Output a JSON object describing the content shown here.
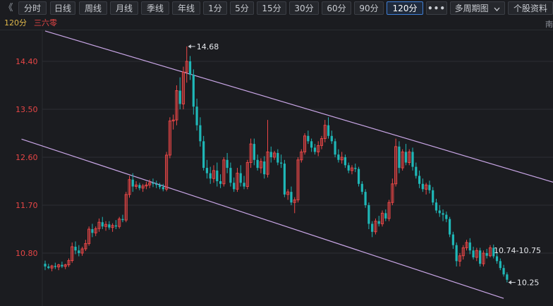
{
  "toolbar": {
    "collapse_icon": "double-chevron-left-icon",
    "collapse_glyph": "《",
    "buttons": [
      "分时",
      "日线",
      "周线",
      "月线",
      "季线",
      "年线",
      "1分",
      "5分",
      "15分",
      "30分",
      "60分",
      "90分",
      "120分"
    ],
    "active": "120分",
    "more_label": "•••",
    "multi_period_label": "多周期图",
    "multi_period_icon": "chevron-down-icon",
    "profile_label": "个股资料"
  },
  "subbar": {
    "period": "120分",
    "stock_name": "三六零",
    "corner_char": "南"
  },
  "colors": {
    "up": "#f04848",
    "down": "#1fb7b7",
    "channel": "#c9a6e6",
    "grid": "#2c2e34",
    "axis_text_up": "#e84646",
    "axis_text": "#c9ccd2",
    "background": "#1b1c20"
  },
  "chart_data": {
    "type": "candlestick",
    "yticks": [
      14.4,
      13.5,
      12.6,
      11.7,
      10.8
    ],
    "ytick_labels": [
      "14.40",
      "13.50",
      "12.60",
      "11.70",
      "10.80"
    ],
    "ylim": [
      9.95,
      14.95
    ],
    "annotations": {
      "high_label": "14.68",
      "low_label": "10.25",
      "range_label": "10.74-10.75"
    },
    "channel_lines": [
      {
        "from": [
          0,
          14.97
        ],
        "to": [
          164,
          11.88
        ]
      },
      {
        "from": [
          -7,
          12.94
        ],
        "to": [
          136,
          9.95
        ]
      }
    ],
    "candles": [
      [
        10.6,
        10.66,
        10.48,
        10.55
      ],
      [
        10.55,
        10.6,
        10.5,
        10.52
      ],
      [
        10.52,
        10.58,
        10.46,
        10.56
      ],
      [
        10.56,
        10.62,
        10.5,
        10.54
      ],
      [
        10.54,
        10.6,
        10.48,
        10.58
      ],
      [
        10.58,
        10.64,
        10.52,
        10.55
      ],
      [
        10.55,
        10.6,
        10.5,
        10.58
      ],
      [
        10.58,
        10.7,
        10.54,
        10.66
      ],
      [
        10.66,
        11.0,
        10.62,
        10.92
      ],
      [
        10.92,
        11.02,
        10.78,
        10.85
      ],
      [
        10.85,
        10.95,
        10.74,
        10.8
      ],
      [
        10.8,
        10.92,
        10.75,
        10.88
      ],
      [
        10.88,
        11.05,
        10.84,
        10.98
      ],
      [
        10.98,
        11.3,
        10.94,
        11.25
      ],
      [
        11.25,
        11.35,
        11.1,
        11.18
      ],
      [
        11.18,
        11.3,
        11.12,
        11.26
      ],
      [
        11.26,
        11.45,
        11.2,
        11.38
      ],
      [
        11.38,
        11.48,
        11.25,
        11.3
      ],
      [
        11.3,
        11.4,
        11.22,
        11.34
      ],
      [
        11.34,
        11.4,
        11.24,
        11.28
      ],
      [
        11.28,
        11.36,
        11.2,
        11.32
      ],
      [
        11.32,
        11.42,
        11.25,
        11.3
      ],
      [
        11.3,
        11.48,
        11.26,
        11.44
      ],
      [
        11.44,
        11.52,
        11.38,
        11.42
      ],
      [
        11.42,
        11.95,
        11.38,
        11.9
      ],
      [
        11.9,
        12.25,
        11.84,
        12.18
      ],
      [
        12.18,
        12.3,
        11.95,
        12.05
      ],
      [
        12.05,
        12.15,
        12.0,
        12.08
      ],
      [
        12.08,
        12.12,
        11.98,
        12.02
      ],
      [
        12.02,
        12.1,
        11.95,
        12.06
      ],
      [
        12.06,
        12.14,
        12.0,
        12.08
      ],
      [
        12.08,
        12.18,
        12.02,
        12.12
      ],
      [
        12.12,
        12.2,
        12.04,
        12.1
      ],
      [
        12.1,
        12.16,
        12.02,
        12.08
      ],
      [
        12.08,
        12.12,
        12.0,
        12.04
      ],
      [
        12.04,
        12.1,
        11.96,
        12.0
      ],
      [
        12.0,
        12.7,
        11.96,
        12.64
      ],
      [
        12.64,
        13.35,
        12.58,
        13.28
      ],
      [
        13.28,
        13.4,
        13.12,
        13.3
      ],
      [
        13.3,
        13.95,
        13.2,
        13.85
      ],
      [
        13.85,
        14.1,
        13.5,
        13.6
      ],
      [
        13.6,
        14.3,
        13.5,
        14.2
      ],
      [
        14.2,
        14.68,
        14.0,
        14.4
      ],
      [
        14.4,
        14.5,
        14.05,
        14.15
      ],
      [
        14.15,
        14.25,
        13.4,
        13.55
      ],
      [
        13.55,
        13.7,
        13.1,
        13.2
      ],
      [
        13.2,
        13.35,
        12.8,
        12.9
      ],
      [
        12.9,
        13.0,
        12.35,
        12.4
      ],
      [
        12.4,
        12.55,
        12.2,
        12.3
      ],
      [
        12.3,
        12.42,
        12.1,
        12.2
      ],
      [
        12.2,
        12.45,
        12.12,
        12.35
      ],
      [
        12.35,
        12.5,
        12.05,
        12.15
      ],
      [
        12.15,
        12.28,
        12.02,
        12.1
      ],
      [
        12.1,
        12.6,
        12.05,
        12.55
      ],
      [
        12.55,
        12.68,
        12.3,
        12.4
      ],
      [
        12.4,
        12.5,
        12.05,
        12.12
      ],
      [
        12.12,
        12.22,
        11.95,
        12.0
      ],
      [
        12.0,
        12.4,
        11.95,
        12.3
      ],
      [
        12.3,
        12.45,
        12.05,
        12.12
      ],
      [
        12.12,
        12.25,
        12.0,
        12.05
      ],
      [
        12.05,
        12.55,
        12.0,
        12.5
      ],
      [
        12.5,
        12.95,
        12.4,
        12.85
      ],
      [
        12.85,
        12.95,
        12.45,
        12.55
      ],
      [
        12.55,
        12.65,
        12.35,
        12.4
      ],
      [
        12.4,
        12.58,
        12.3,
        12.52
      ],
      [
        12.52,
        12.62,
        12.2,
        12.28
      ],
      [
        12.28,
        13.3,
        12.22,
        12.7
      ],
      [
        12.7,
        12.8,
        12.5,
        12.6
      ],
      [
        12.6,
        12.72,
        12.55,
        12.68
      ],
      [
        12.68,
        12.75,
        12.45,
        12.5
      ],
      [
        12.5,
        12.65,
        12.4,
        12.48
      ],
      [
        12.48,
        12.55,
        11.85,
        11.9
      ],
      [
        11.9,
        12.0,
        11.8,
        11.95
      ],
      [
        11.95,
        12.05,
        11.7,
        11.75
      ],
      [
        11.75,
        11.85,
        11.55,
        11.8
      ],
      [
        11.8,
        12.6,
        11.75,
        12.55
      ],
      [
        12.55,
        12.75,
        12.5,
        12.7
      ],
      [
        12.7,
        13.05,
        12.65,
        13.0
      ],
      [
        13.0,
        13.1,
        12.85,
        12.9
      ],
      [
        12.9,
        12.95,
        12.7,
        12.78
      ],
      [
        12.78,
        12.85,
        12.65,
        12.7
      ],
      [
        12.7,
        12.9,
        12.62,
        12.82
      ],
      [
        12.82,
        13.0,
        12.75,
        12.95
      ],
      [
        12.95,
        13.3,
        12.88,
        13.2
      ],
      [
        13.2,
        13.35,
        12.95,
        13.0
      ],
      [
        13.0,
        13.1,
        12.85,
        12.9
      ],
      [
        12.9,
        12.95,
        12.6,
        12.65
      ],
      [
        12.65,
        12.75,
        12.5,
        12.55
      ],
      [
        12.55,
        12.7,
        12.48,
        12.6
      ],
      [
        12.6,
        12.65,
        12.4,
        12.45
      ],
      [
        12.45,
        12.5,
        12.3,
        12.35
      ],
      [
        12.35,
        12.45,
        12.28,
        12.4
      ],
      [
        12.4,
        12.48,
        12.32,
        12.38
      ],
      [
        12.38,
        12.42,
        12.05,
        12.1
      ],
      [
        12.1,
        12.15,
        11.9,
        11.95
      ],
      [
        11.95,
        12.0,
        11.65,
        11.7
      ],
      [
        11.7,
        11.75,
        11.25,
        11.35
      ],
      [
        11.35,
        11.4,
        11.1,
        11.2
      ],
      [
        11.2,
        11.45,
        11.15,
        11.4
      ],
      [
        11.4,
        11.5,
        11.3,
        11.35
      ],
      [
        11.35,
        11.6,
        11.3,
        11.55
      ],
      [
        11.55,
        11.62,
        11.4,
        11.45
      ],
      [
        11.45,
        11.8,
        11.4,
        11.75
      ],
      [
        11.75,
        12.2,
        11.7,
        12.1
      ],
      [
        12.1,
        12.95,
        12.05,
        12.8
      ],
      [
        12.8,
        12.9,
        12.3,
        12.4
      ],
      [
        12.4,
        12.75,
        12.35,
        12.7
      ],
      [
        12.7,
        12.85,
        12.45,
        12.5
      ],
      [
        12.5,
        12.75,
        12.45,
        12.7
      ],
      [
        12.7,
        12.78,
        12.35,
        12.42
      ],
      [
        12.42,
        12.5,
        12.2,
        12.25
      ],
      [
        12.25,
        12.35,
        12.02,
        12.1
      ],
      [
        12.1,
        12.2,
        11.95,
        12.0
      ],
      [
        12.0,
        12.12,
        11.9,
        12.08
      ],
      [
        12.08,
        12.16,
        11.92,
        11.98
      ],
      [
        11.98,
        12.04,
        11.7,
        11.75
      ],
      [
        11.75,
        11.82,
        11.55,
        11.6
      ],
      [
        11.6,
        11.7,
        11.48,
        11.55
      ],
      [
        11.55,
        11.62,
        11.4,
        11.52
      ],
      [
        11.52,
        11.58,
        11.38,
        11.44
      ],
      [
        11.44,
        11.48,
        11.1,
        11.15
      ],
      [
        11.15,
        11.2,
        10.88,
        10.95
      ],
      [
        10.95,
        11.0,
        10.55,
        10.65
      ],
      [
        10.65,
        10.8,
        10.55,
        10.75
      ],
      [
        10.75,
        10.95,
        10.68,
        10.9
      ],
      [
        10.9,
        11.05,
        10.85,
        11.0
      ],
      [
        11.0,
        11.08,
        10.78,
        10.85
      ],
      [
        10.85,
        10.92,
        10.68,
        10.72
      ],
      [
        10.72,
        10.9,
        10.65,
        10.85
      ],
      [
        10.85,
        10.9,
        10.55,
        10.6
      ],
      [
        10.6,
        10.85,
        10.55,
        10.8
      ],
      [
        10.8,
        10.88,
        10.7,
        10.75
      ],
      [
        10.75,
        10.95,
        10.72,
        10.9
      ],
      [
        10.9,
        10.96,
        10.7,
        10.74
      ],
      [
        10.74,
        10.82,
        10.6,
        10.65
      ],
      [
        10.65,
        10.7,
        10.48,
        10.52
      ],
      [
        10.52,
        10.58,
        10.36,
        10.4
      ],
      [
        10.4,
        10.44,
        10.25,
        10.3
      ]
    ]
  }
}
